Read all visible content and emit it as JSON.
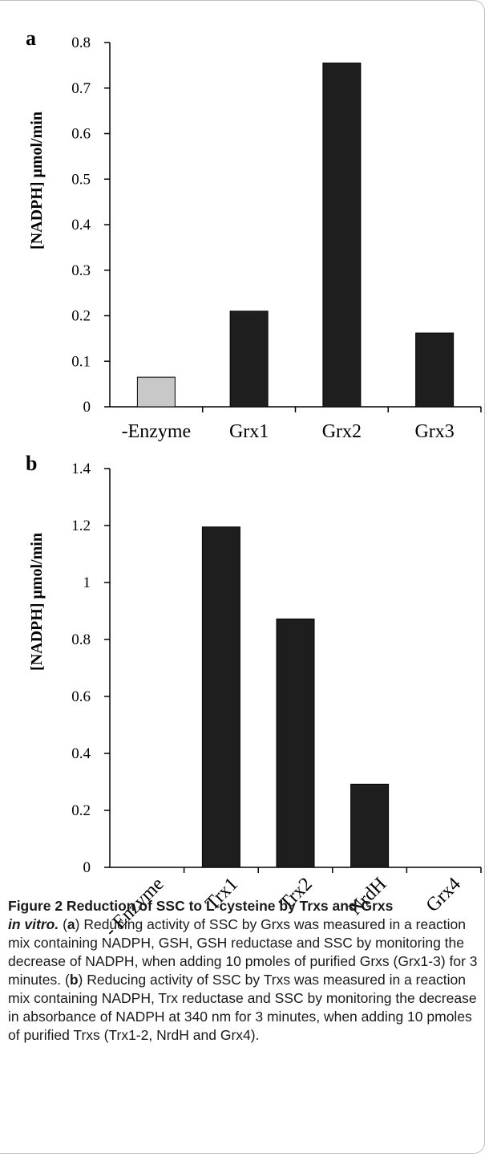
{
  "chart_data": [
    {
      "panel": "a",
      "type": "bar",
      "ylabel": "[NADPH] μmol/min",
      "ylim": [
        0,
        0.8
      ],
      "yticks": [
        "0",
        "0.1",
        "0.2",
        "0.3",
        "0.4",
        "0.5",
        "0.6",
        "0.7",
        "0.8"
      ],
      "categories": [
        "-Enzyme",
        "Grx1",
        "Grx2",
        "Grx3"
      ],
      "values": [
        0.065,
        0.21,
        0.755,
        0.162
      ],
      "colors": [
        "#c8c8c8",
        "#1e1e1e",
        "#1e1e1e",
        "#1e1e1e"
      ],
      "grid": false,
      "category_rotation": 0
    },
    {
      "panel": "b",
      "type": "bar",
      "ylabel": "[NADPH] μmol/min",
      "ylim": [
        0,
        1.4
      ],
      "yticks": [
        "0",
        "0.2",
        "0.4",
        "0.6",
        "0.8",
        "1",
        "1.2",
        "1.4"
      ],
      "categories": [
        "- Enzyme",
        "Trx1",
        "Trx2",
        "NrdH",
        "Grx4"
      ],
      "values": [
        0,
        1.195,
        0.872,
        0.292,
        0
      ],
      "colors": [
        "#1e1e1e",
        "#1e1e1e",
        "#1e1e1e",
        "#1e1e1e",
        "#1e1e1e"
      ],
      "grid": false,
      "category_rotation": -45
    }
  ],
  "caption": {
    "title_line": "Figure 2 Reduction of SSC to L-cysteine by Trxs and Grxs",
    "title_italic": "in vitro.",
    "seg1": " (",
    "panel_a": "a",
    "seg2": ") Reducing activity of SSC by Grxs was measured in a reaction mix containing NADPH, GSH, GSH reductase and SSC by monitoring the decrease of NADPH, when adding 10 pmoles of purified Grxs (Grx1-3) for 3 minutes. (",
    "panel_b": "b",
    "seg3": ") Reducing activity of SSC by Trxs was measured in a reaction mix containing NADPH, Trx reductase and SSC by monitoring the decrease in absorbance of NADPH at 340 nm for 3 minutes, when adding 10 pmoles of purified Trxs (Trx1-2, NrdH and Grx4)."
  }
}
